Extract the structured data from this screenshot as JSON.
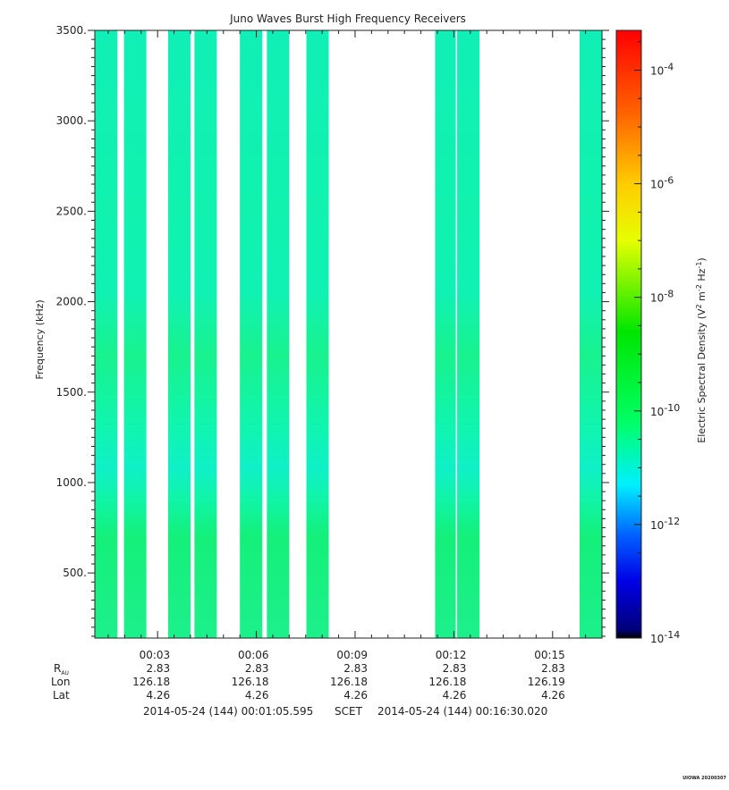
{
  "chart_data": {
    "type": "heatmap",
    "title": "Juno Waves Burst High Frequency Receivers",
    "ylabel": "Frequency (kHz)",
    "ylim": [
      140,
      3500
    ],
    "y_ticks": [
      "500.",
      "1000.",
      "1500.",
      "2000.",
      "2500.",
      "3000.",
      "3500."
    ],
    "x_ticks": [
      {
        "time": "00:03",
        "r": "2.83",
        "lon": "126.18",
        "lat": "4.26"
      },
      {
        "time": "00:06",
        "r": "2.83",
        "lon": "126.18",
        "lat": "4.26"
      },
      {
        "time": "00:09",
        "r": "2.83",
        "lon": "126.18",
        "lat": "4.26"
      },
      {
        "time": "00:12",
        "r": "2.83",
        "lon": "126.18",
        "lat": "4.26"
      },
      {
        "time": "00:15",
        "r": "2.83",
        "lon": "126.19",
        "lat": "4.26"
      }
    ],
    "row_labels": {
      "r": "R",
      "r_sub": "AU",
      "lon": "Lon",
      "lat": "Lat"
    },
    "time_range": {
      "start": "2014-05-24 (144) 00:01:05.595",
      "mid_label": "SCET",
      "end": "2014-05-24 (144) 00:16:30.020"
    },
    "xlim_minutes": [
      1.0933,
      16.5003
    ],
    "bursts_minutes": [
      [
        1.1,
        1.78
      ],
      [
        1.98,
        2.66
      ],
      [
        3.32,
        4.0
      ],
      [
        4.12,
        4.8
      ],
      [
        5.5,
        6.18
      ],
      [
        6.32,
        7.0
      ],
      [
        7.52,
        8.2
      ],
      [
        11.43,
        12.06
      ],
      [
        12.1,
        12.78
      ],
      [
        15.82,
        16.5
      ]
    ],
    "spectral_profile": [
      {
        "freq": 200,
        "color": "#1cf08a"
      },
      {
        "freq": 700,
        "color": "#14f07a"
      },
      {
        "freq": 900,
        "color": "#10f5a6"
      },
      {
        "freq": 1080,
        "color": "#10f0c8"
      },
      {
        "freq": 1300,
        "color": "#10f5b0"
      },
      {
        "freq": 1700,
        "color": "#18f28e"
      },
      {
        "freq": 2050,
        "color": "#10f2b4"
      },
      {
        "freq": 2500,
        "color": "#10f2ae"
      },
      {
        "freq": 3500,
        "color": "#10f0b6"
      }
    ],
    "colorbar": {
      "label": "Electric Spectral Density (V",
      "label_sup1": "2",
      "label_mid": " m",
      "label_sup2": "-2",
      "label_mid2": " Hz",
      "label_sup3": "-1",
      "label_end": ")",
      "log_min": -14,
      "log_max": -3.3,
      "tick_base": "10",
      "tick_exponents": [
        "-4",
        "-6",
        "-8",
        "-10",
        "-12",
        "-14"
      ],
      "stops": [
        {
          "value": -14,
          "color": "#000000"
        },
        {
          "value": -13.85,
          "color": "#00007a"
        },
        {
          "value": -13,
          "color": "#0000e6"
        },
        {
          "value": -12.2,
          "color": "#0060ff"
        },
        {
          "value": -11.3,
          "color": "#00f0ff"
        },
        {
          "value": -10.2,
          "color": "#00ff66"
        },
        {
          "value": -8.6,
          "color": "#00e600"
        },
        {
          "value": -7.0,
          "color": "#e6ff00"
        },
        {
          "value": -6.0,
          "color": "#ffcc00"
        },
        {
          "value": -4.8,
          "color": "#ff6600"
        },
        {
          "value": -3.3,
          "color": "#ff0000"
        }
      ]
    }
  },
  "footer": {
    "stamp": "UIOWA 20200307"
  }
}
